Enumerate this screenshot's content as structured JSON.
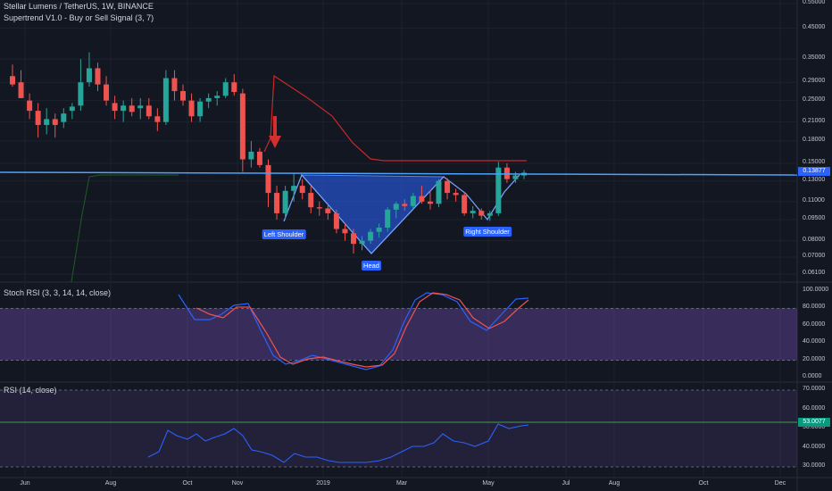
{
  "header": {
    "title": "Stellar Lumens / TetherUS, 1W, BINANCE",
    "indicator": "Supertrend V1.0 - Buy or Sell Signal (3, 7)"
  },
  "panes": {
    "stoch_label": "Stoch RSI (3, 3, 14, 14, close)",
    "rsi_label": "RSI (14, close)"
  },
  "price_axis": {
    "ticks": [
      "0.55000",
      "0.45000",
      "0.35000",
      "0.29000",
      "0.25000",
      "0.21000",
      "0.18000",
      "0.15000",
      "0.13000",
      "0.11000",
      "0.09500",
      "0.08000",
      "0.07000",
      "0.06100"
    ],
    "current_price": "0.13877",
    "current_color": "#2962ff"
  },
  "stoch_axis": {
    "ticks": [
      "100.0000",
      "80.0000",
      "60.0000",
      "40.0000",
      "20.0000",
      "0.0000"
    ]
  },
  "rsi_axis": {
    "ticks": [
      "70.0000",
      "60.0000",
      "50.0000",
      "40.0000",
      "30.0000"
    ],
    "current": "53.0077",
    "current_color": "#089981"
  },
  "time_axis": {
    "labels": [
      "Jun",
      "Aug",
      "Oct",
      "Nov",
      "2019",
      "Mar",
      "May",
      "Jul",
      "Aug",
      "Oct",
      "Dec"
    ]
  },
  "annotations": {
    "left": "Left Shoulder",
    "head": "Head",
    "right": "Right Shoulder"
  },
  "colors": {
    "up": "#26a69a",
    "down": "#ef5350",
    "supertrend": "#c62828",
    "pattern_fill": "#2962ff",
    "stoch_k": "#2962ff",
    "stoch_d": "#ef5350",
    "rsi": "#2962ff",
    "band": "#7e57c2"
  },
  "chart_data": {
    "type": "candlestick",
    "weeks": [
      {
        "o": 0.305,
        "h": 0.335,
        "l": 0.28,
        "c": 0.285
      },
      {
        "o": 0.29,
        "h": 0.32,
        "l": 0.255,
        "c": 0.255
      },
      {
        "o": 0.25,
        "h": 0.265,
        "l": 0.215,
        "c": 0.23
      },
      {
        "o": 0.23,
        "h": 0.245,
        "l": 0.185,
        "c": 0.205
      },
      {
        "o": 0.205,
        "h": 0.235,
        "l": 0.19,
        "c": 0.215
      },
      {
        "o": 0.215,
        "h": 0.225,
        "l": 0.185,
        "c": 0.205
      },
      {
        "o": 0.21,
        "h": 0.235,
        "l": 0.2,
        "c": 0.225
      },
      {
        "o": 0.23,
        "h": 0.245,
        "l": 0.215,
        "c": 0.238
      },
      {
        "o": 0.24,
        "h": 0.35,
        "l": 0.23,
        "c": 0.29
      },
      {
        "o": 0.29,
        "h": 0.37,
        "l": 0.28,
        "c": 0.325
      },
      {
        "o": 0.325,
        "h": 0.34,
        "l": 0.27,
        "c": 0.285
      },
      {
        "o": 0.285,
        "h": 0.305,
        "l": 0.24,
        "c": 0.25
      },
      {
        "o": 0.245,
        "h": 0.26,
        "l": 0.215,
        "c": 0.23
      },
      {
        "o": 0.23,
        "h": 0.25,
        "l": 0.21,
        "c": 0.24
      },
      {
        "o": 0.24,
        "h": 0.255,
        "l": 0.22,
        "c": 0.228
      },
      {
        "o": 0.235,
        "h": 0.255,
        "l": 0.215,
        "c": 0.24
      },
      {
        "o": 0.24,
        "h": 0.255,
        "l": 0.215,
        "c": 0.22
      },
      {
        "o": 0.22,
        "h": 0.235,
        "l": 0.195,
        "c": 0.21
      },
      {
        "o": 0.21,
        "h": 0.32,
        "l": 0.205,
        "c": 0.3
      },
      {
        "o": 0.3,
        "h": 0.32,
        "l": 0.25,
        "c": 0.27
      },
      {
        "o": 0.27,
        "h": 0.285,
        "l": 0.24,
        "c": 0.25
      },
      {
        "o": 0.25,
        "h": 0.265,
        "l": 0.21,
        "c": 0.22
      },
      {
        "o": 0.22,
        "h": 0.255,
        "l": 0.21,
        "c": 0.248
      },
      {
        "o": 0.248,
        "h": 0.265,
        "l": 0.235,
        "c": 0.255
      },
      {
        "o": 0.255,
        "h": 0.27,
        "l": 0.24,
        "c": 0.26
      },
      {
        "o": 0.26,
        "h": 0.3,
        "l": 0.255,
        "c": 0.29
      },
      {
        "o": 0.29,
        "h": 0.31,
        "l": 0.26,
        "c": 0.268
      },
      {
        "o": 0.265,
        "h": 0.275,
        "l": 0.14,
        "c": 0.155
      },
      {
        "o": 0.155,
        "h": 0.18,
        "l": 0.145,
        "c": 0.165
      },
      {
        "o": 0.165,
        "h": 0.17,
        "l": 0.145,
        "c": 0.148
      },
      {
        "o": 0.148,
        "h": 0.155,
        "l": 0.105,
        "c": 0.118
      },
      {
        "o": 0.118,
        "h": 0.125,
        "l": 0.095,
        "c": 0.1
      },
      {
        "o": 0.1,
        "h": 0.125,
        "l": 0.095,
        "c": 0.12
      },
      {
        "o": 0.12,
        "h": 0.138,
        "l": 0.11,
        "c": 0.125
      },
      {
        "o": 0.125,
        "h": 0.132,
        "l": 0.112,
        "c": 0.118
      },
      {
        "o": 0.118,
        "h": 0.125,
        "l": 0.1,
        "c": 0.105
      },
      {
        "o": 0.105,
        "h": 0.11,
        "l": 0.098,
        "c": 0.104
      },
      {
        "o": 0.104,
        "h": 0.108,
        "l": 0.095,
        "c": 0.1
      },
      {
        "o": 0.1,
        "h": 0.103,
        "l": 0.085,
        "c": 0.088
      },
      {
        "o": 0.088,
        "h": 0.092,
        "l": 0.08,
        "c": 0.085
      },
      {
        "o": 0.085,
        "h": 0.088,
        "l": 0.072,
        "c": 0.078
      },
      {
        "o": 0.078,
        "h": 0.083,
        "l": 0.074,
        "c": 0.08
      },
      {
        "o": 0.08,
        "h": 0.088,
        "l": 0.078,
        "c": 0.086
      },
      {
        "o": 0.086,
        "h": 0.092,
        "l": 0.082,
        "c": 0.089
      },
      {
        "o": 0.089,
        "h": 0.105,
        "l": 0.086,
        "c": 0.103
      },
      {
        "o": 0.103,
        "h": 0.11,
        "l": 0.096,
        "c": 0.108
      },
      {
        "o": 0.108,
        "h": 0.112,
        "l": 0.102,
        "c": 0.106
      },
      {
        "o": 0.106,
        "h": 0.118,
        "l": 0.104,
        "c": 0.115
      },
      {
        "o": 0.115,
        "h": 0.125,
        "l": 0.108,
        "c": 0.11
      },
      {
        "o": 0.11,
        "h": 0.12,
        "l": 0.103,
        "c": 0.108
      },
      {
        "o": 0.108,
        "h": 0.132,
        "l": 0.105,
        "c": 0.13
      },
      {
        "o": 0.13,
        "h": 0.133,
        "l": 0.112,
        "c": 0.118
      },
      {
        "o": 0.118,
        "h": 0.122,
        "l": 0.11,
        "c": 0.116
      },
      {
        "o": 0.116,
        "h": 0.118,
        "l": 0.098,
        "c": 0.1
      },
      {
        "o": 0.1,
        "h": 0.106,
        "l": 0.096,
        "c": 0.102
      },
      {
        "o": 0.102,
        "h": 0.104,
        "l": 0.095,
        "c": 0.098
      },
      {
        "o": 0.098,
        "h": 0.102,
        "l": 0.094,
        "c": 0.1
      },
      {
        "o": 0.1,
        "h": 0.152,
        "l": 0.098,
        "c": 0.145
      },
      {
        "o": 0.145,
        "h": 0.15,
        "l": 0.128,
        "c": 0.132
      },
      {
        "o": 0.132,
        "h": 0.14,
        "l": 0.128,
        "c": 0.136
      },
      {
        "o": 0.136,
        "h": 0.142,
        "l": 0.132,
        "c": 0.139
      }
    ]
  }
}
